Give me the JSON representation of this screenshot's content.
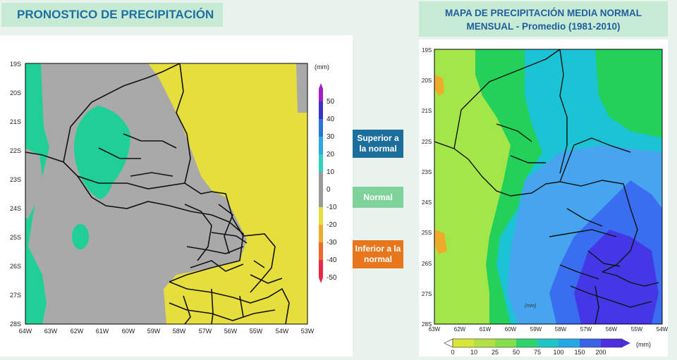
{
  "left_panel": {
    "title": "PRONOSTICO DE PRECIPITACIÓN",
    "unit": "(mm)",
    "lat_ticks": [
      "19S",
      "20S",
      "21S",
      "22S",
      "23S",
      "24S",
      "25S",
      "26S",
      "27S",
      "28S"
    ],
    "lon_ticks": [
      "64W",
      "63W",
      "62W",
      "61W",
      "60W",
      "59W",
      "58W",
      "57W",
      "56W",
      "55W",
      "54W",
      "53W"
    ],
    "colorbar": {
      "labels": [
        "50",
        "40",
        "30",
        "20",
        "10",
        "0",
        "-10",
        "-20",
        "-30",
        "-40",
        "-50"
      ],
      "colors": [
        "#a51cc9",
        "#3b33c8",
        "#2b74d8",
        "#2ca8e6",
        "#2fd2c0",
        "#9a9a9a",
        "#9a9a9a",
        "#e8dd3a",
        "#eeaa2b",
        "#ee6a2a",
        "#e8284a"
      ]
    },
    "legend": [
      {
        "label": "Superior a la normal",
        "color": "#1c6e9b"
      },
      {
        "label": "Normal",
        "color": "#7fd39a"
      },
      {
        "label": "Inferior a la normal",
        "color": "#e8761c"
      }
    ],
    "colors": {
      "gray": "#a9a9a9",
      "yellow": "#e6de3c",
      "green": "#1fcf95"
    }
  },
  "right_panel": {
    "title_line1": "MAPA DE PRECIPITACIÓN MEDIA NORMAL",
    "title_line2": "MENSUAL - Promedio (1981-2010)",
    "unit": "(mm)",
    "inner_label": "(mm)",
    "lat_ticks": [
      "19S",
      "20S",
      "21S",
      "22S",
      "23S",
      "24S",
      "25S",
      "26S",
      "27S",
      "28S"
    ],
    "lon_ticks": [
      "63W",
      "62W",
      "61W",
      "60W",
      "59W",
      "58W",
      "57W",
      "56W",
      "55W",
      "54W"
    ],
    "colorbar": {
      "labels": [
        "0",
        "10",
        "25",
        "50",
        "75",
        "100",
        "150",
        "200"
      ],
      "colors": [
        "#ffffff",
        "#d8e63a",
        "#b4e046",
        "#86de4a",
        "#2fd46a",
        "#1fc6c4",
        "#27a8e6",
        "#3a63e8",
        "#4d2fe0"
      ]
    },
    "colors": {
      "green_light": "#a3e64a",
      "green": "#22d05a",
      "cyan": "#1cc3d4",
      "blue_light": "#47a4ee",
      "blue": "#3a6ef0",
      "blue_dark": "#4438e6"
    }
  }
}
